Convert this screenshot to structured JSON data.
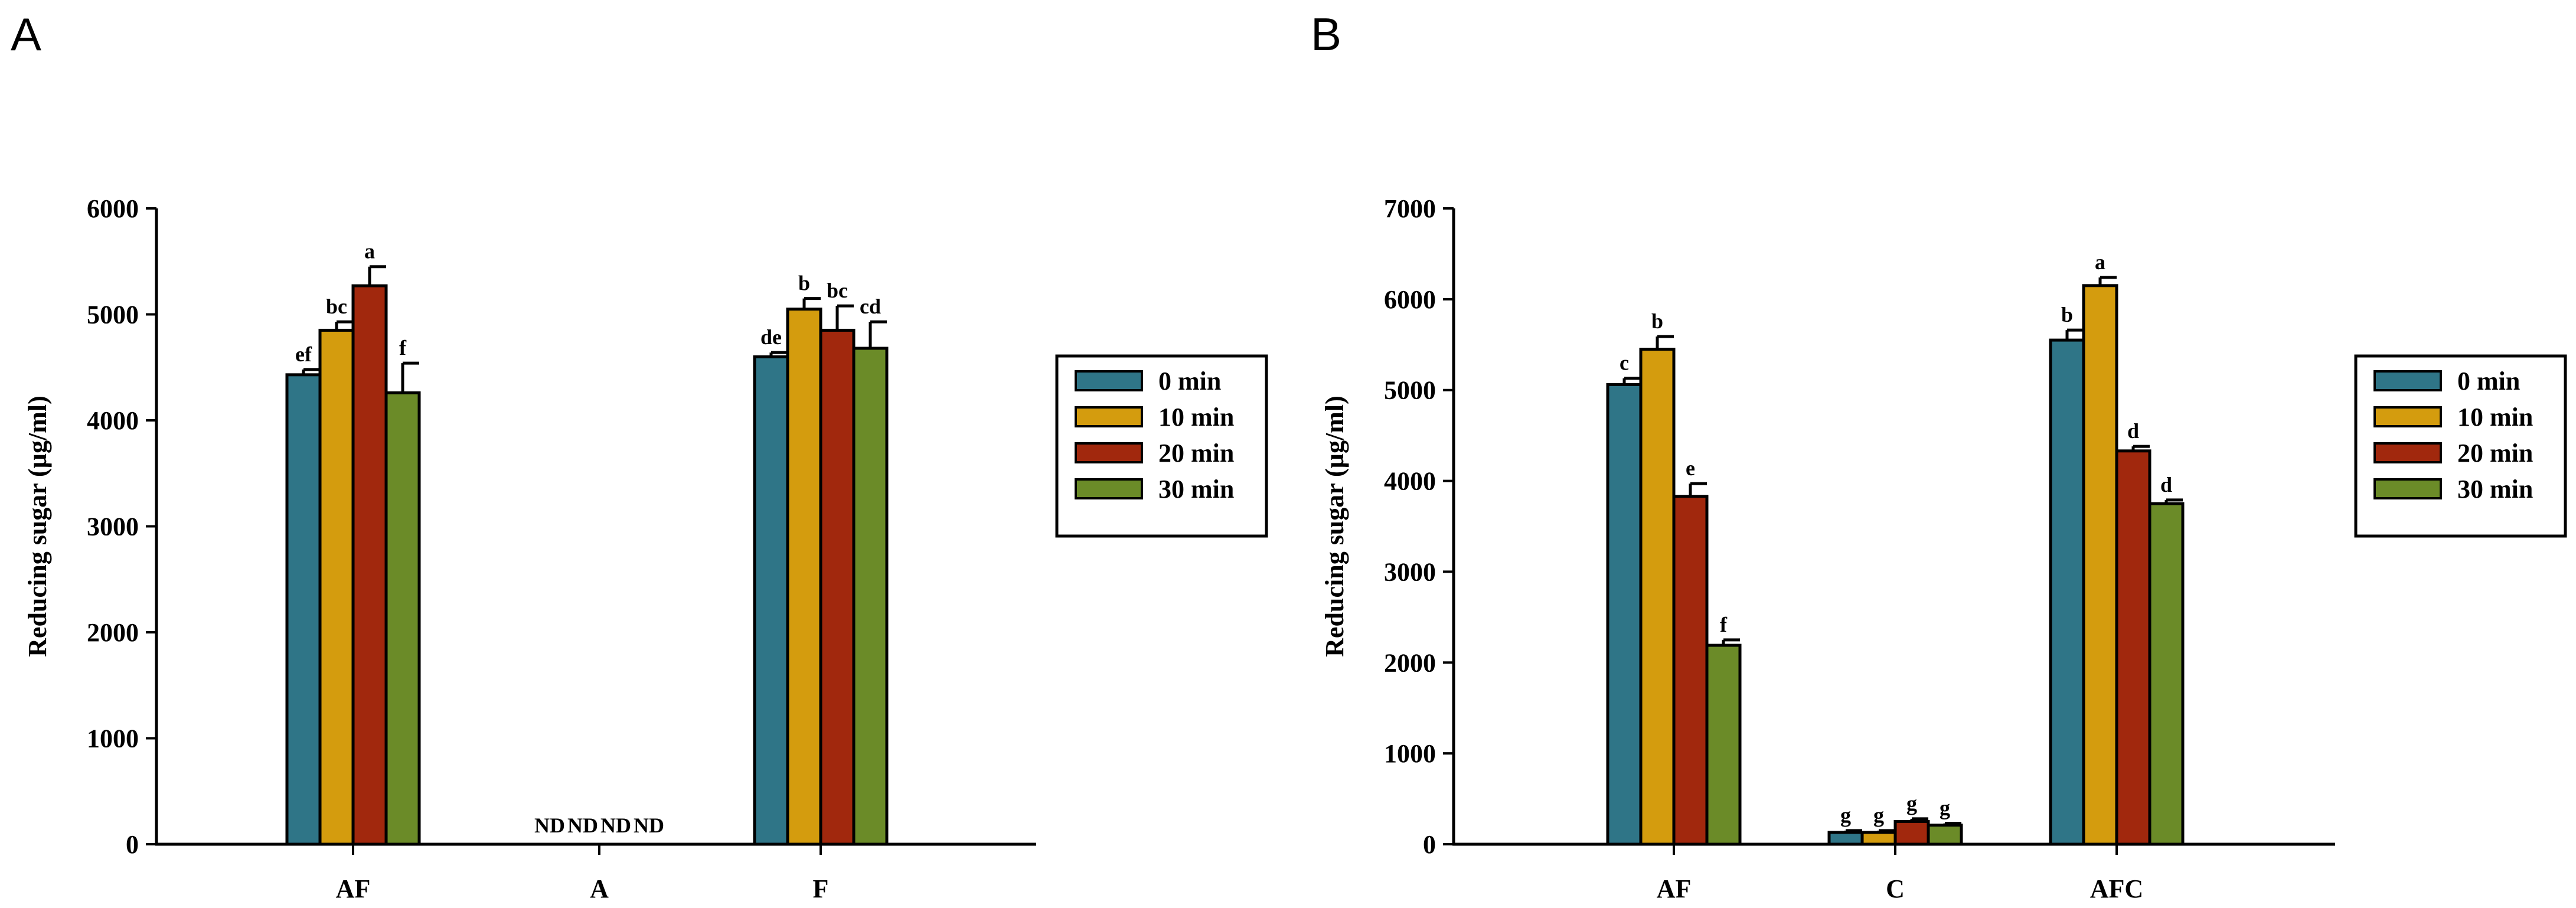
{
  "chart_data": [
    {
      "type": "bar",
      "panel": "A",
      "title": "",
      "xlabel": "",
      "ylabel": "Reducing sugar (µg/ml)",
      "ylim": [
        0,
        6000
      ],
      "yticks": [
        "0",
        "1000",
        "2000",
        "3000",
        "4000",
        "5000",
        "6000"
      ],
      "categories": [
        "AF",
        "A",
        "F"
      ],
      "legend_position": "right",
      "series": [
        {
          "name": "0 min",
          "color": "#2f7587",
          "values": [
            4430,
            0,
            4600
          ],
          "errors": [
            50,
            0,
            40
          ],
          "labels": [
            "ef",
            "ND",
            "de"
          ]
        },
        {
          "name": "10 min",
          "color": "#d49c0e",
          "values": [
            4850,
            0,
            5050
          ],
          "errors": [
            80,
            0,
            100
          ],
          "labels": [
            "bc",
            "ND",
            "b"
          ]
        },
        {
          "name": "20 min",
          "color": "#a1280d",
          "values": [
            5270,
            0,
            4850
          ],
          "errors": [
            180,
            0,
            230
          ],
          "labels": [
            "a",
            "ND",
            "bc"
          ]
        },
        {
          "name": "30 min",
          "color": "#6b8b28",
          "values": [
            4260,
            0,
            4680
          ],
          "errors": [
            280,
            0,
            250
          ],
          "labels": [
            "f",
            "ND",
            "cd"
          ]
        }
      ]
    },
    {
      "type": "bar",
      "panel": "B",
      "title": "",
      "xlabel": "",
      "ylabel": "Reducing sugar (µg/ml)",
      "ylim": [
        0,
        7000
      ],
      "yticks": [
        "0",
        "1000",
        "2000",
        "3000",
        "4000",
        "5000",
        "6000",
        "7000"
      ],
      "categories": [
        "AF",
        "C",
        "AFC"
      ],
      "legend_position": "right",
      "series": [
        {
          "name": "0 min",
          "color": "#2f7587",
          "values": [
            5060,
            130,
            5550
          ],
          "errors": [
            70,
            20,
            110
          ],
          "labels": [
            "c",
            "g",
            "b"
          ]
        },
        {
          "name": "10 min",
          "color": "#d49c0e",
          "values": [
            5450,
            130,
            6150
          ],
          "errors": [
            140,
            20,
            90
          ],
          "labels": [
            "b",
            "g",
            "a"
          ]
        },
        {
          "name": "20 min",
          "color": "#a1280d",
          "values": [
            3830,
            250,
            4330
          ],
          "errors": [
            140,
            30,
            50
          ],
          "labels": [
            "e",
            "g",
            "d"
          ]
        },
        {
          "name": "30 min",
          "color": "#6b8b28",
          "values": [
            2190,
            210,
            3750
          ],
          "errors": [
            60,
            20,
            40
          ],
          "labels": [
            "f",
            "g",
            "d"
          ]
        }
      ]
    }
  ]
}
